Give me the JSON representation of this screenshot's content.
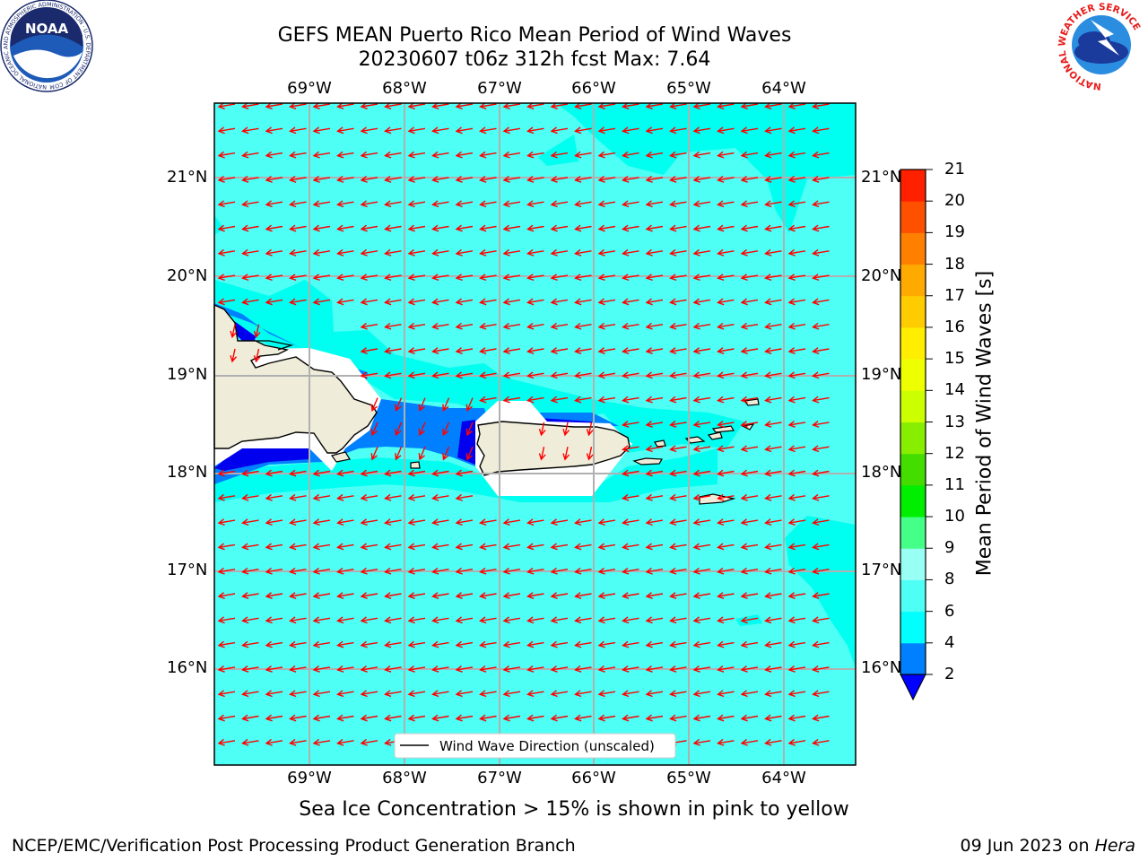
{
  "header": {
    "title_line1": "GEFS MEAN Puerto Rico Mean Period of Wind Waves",
    "title_line2": "20230607 t06z 312h fcst   Max: 7.64"
  },
  "logos": {
    "left": {
      "name": "noaa-logo",
      "text": "NOAA",
      "ring_text": "NATIONAL OCEANIC AND ATMOSPHERIC ADMINISTRATION · U.S. DEPARTMENT OF COMMERCE"
    },
    "right": {
      "name": "nws-logo",
      "ring_text": "NATIONAL WEATHER SERVICE"
    }
  },
  "map": {
    "lon_labels": [
      "69°W",
      "68°W",
      "67°W",
      "66°W",
      "65°W",
      "64°W"
    ],
    "lat_labels": [
      "21°N",
      "20°N",
      "19°N",
      "18°N",
      "17°N",
      "16°N"
    ],
    "legend_label": "Wind Wave Direction (unscaled)",
    "colors": {
      "ocean": "#4dfff5",
      "ocean_light": "#00fff0",
      "shallow": "#0080ff",
      "deep": "#0000ee",
      "land": "#efedd9",
      "arrow": "#ff0000",
      "grid": "#b0b0b0"
    }
  },
  "colorbar": {
    "title": "Mean Period of Wind Waves [s]",
    "ticks": [
      "2",
      "4",
      "6",
      "8",
      "9",
      "10",
      "11",
      "12",
      "13",
      "14",
      "15",
      "16",
      "17",
      "18",
      "19",
      "20",
      "21"
    ],
    "colors": [
      "#0000ff",
      "#0080ff",
      "#00ffff",
      "#4dfff5",
      "#99fff5",
      "#44ff88",
      "#00ee00",
      "#44dd00",
      "#88ee00",
      "#ccff00",
      "#eeff00",
      "#ffee00",
      "#ffcc00",
      "#ffaa00",
      "#ff8000",
      "#ff5000",
      "#ff2000",
      "#ff0000"
    ]
  },
  "subtitle": "Sea Ice Concentration > 15% is shown in pink to yellow",
  "footer": {
    "left": "NCEP/EMC/Verification Post Processing Product Generation Branch",
    "right_date": "09 Jun 2023 on ",
    "right_host": "Hera"
  }
}
